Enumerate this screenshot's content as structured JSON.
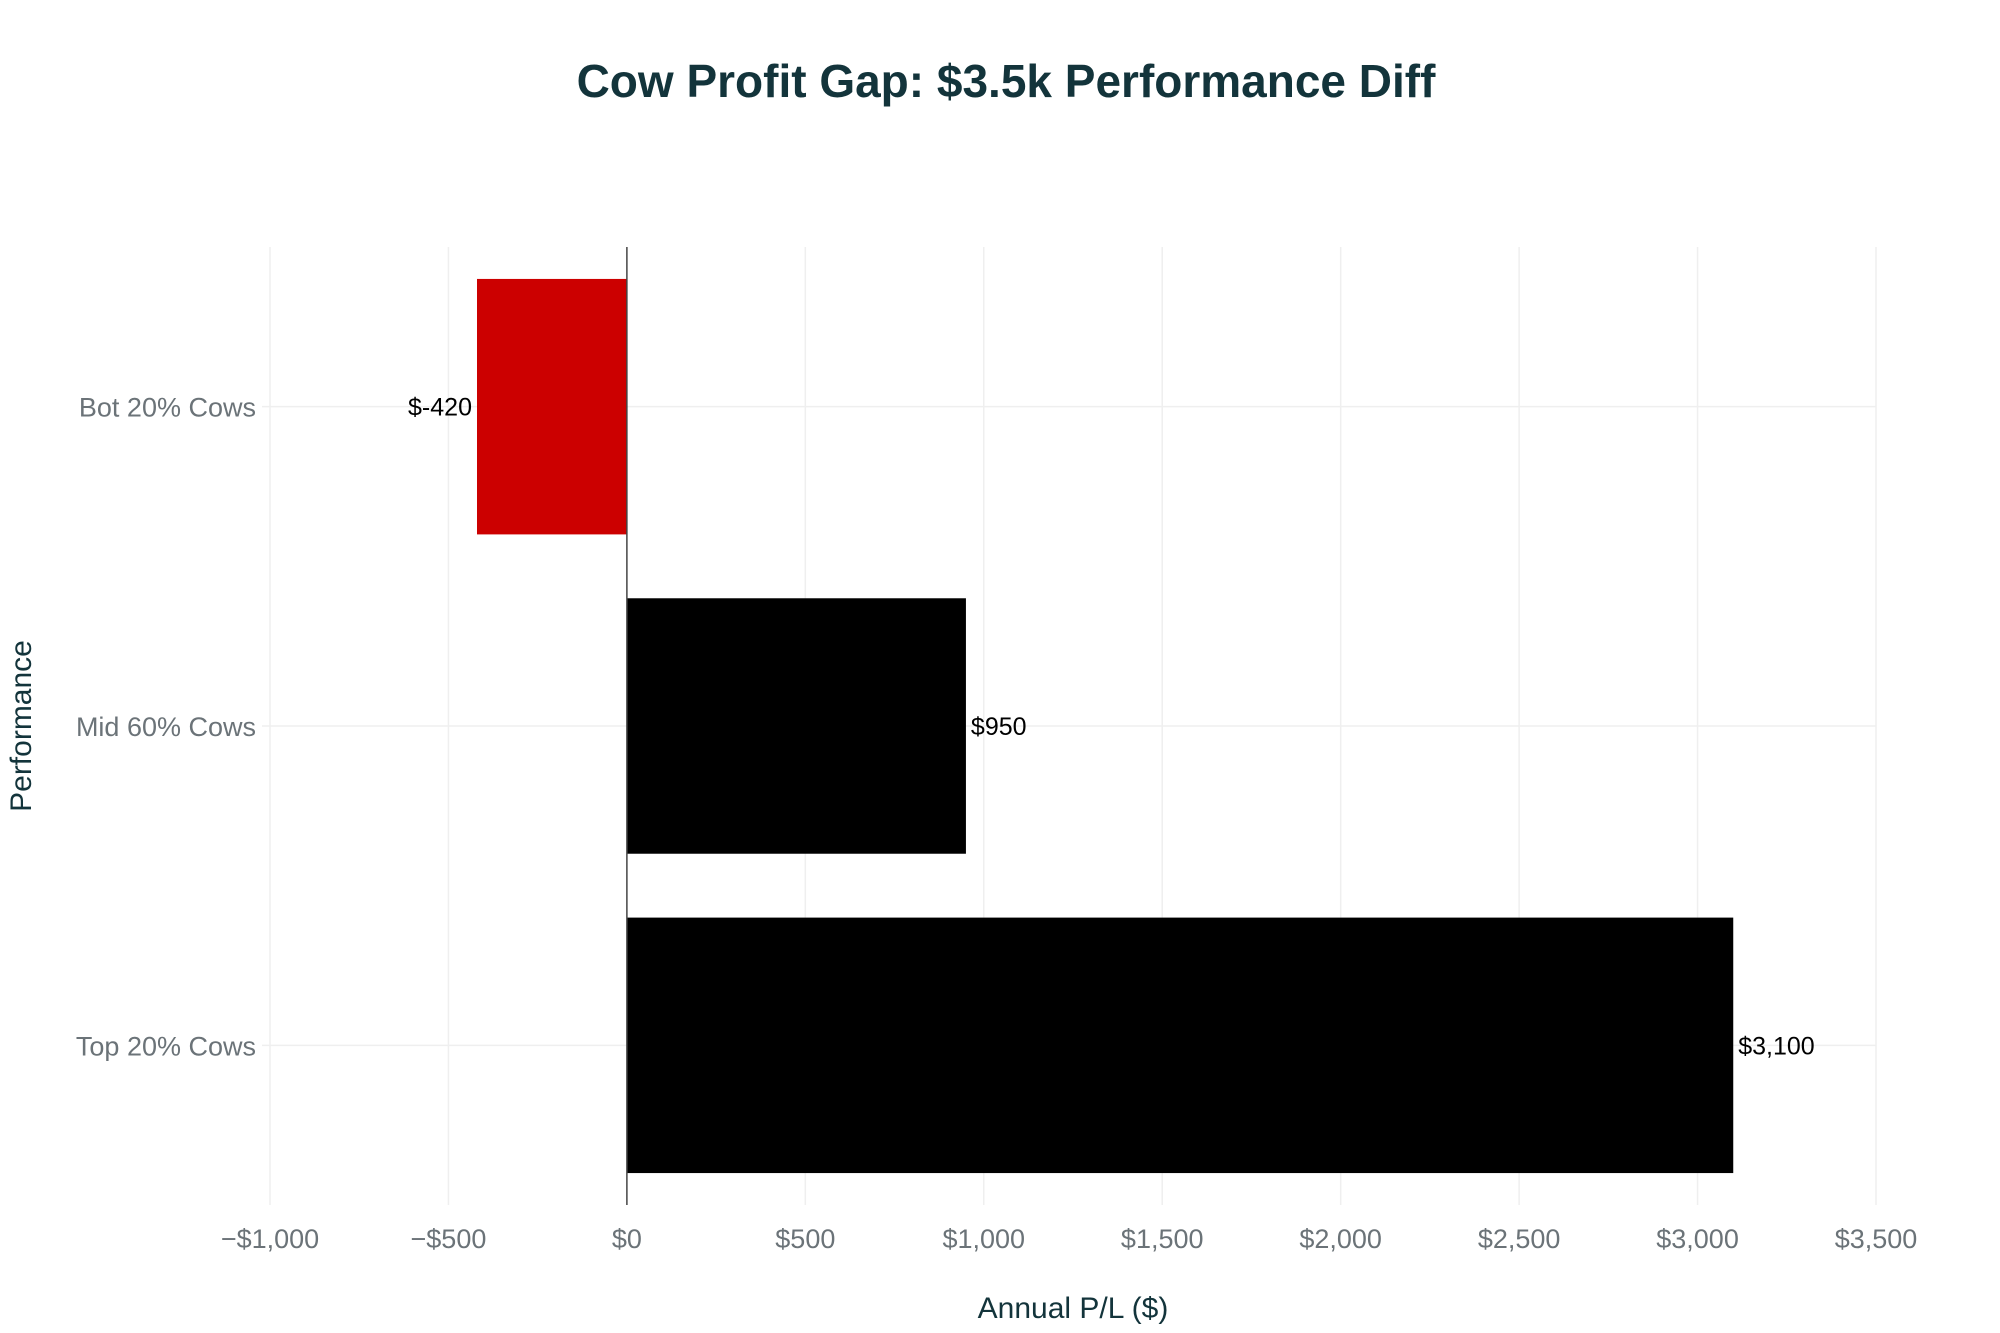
{
  "chart_data": {
    "type": "bar",
    "orientation": "horizontal",
    "title": "Cow Profit Gap: $3.5k Performance Diff",
    "xlabel": "Annual P/L ($)",
    "ylabel": "Performance",
    "categories": [
      "Top 20% Cows",
      "Mid 60% Cows",
      "Bot 20% Cows"
    ],
    "values": [
      3100,
      950,
      -420
    ],
    "data_labels": [
      "$3,100",
      "$950",
      "$-420"
    ],
    "bar_colors": [
      "#000000",
      "#000000",
      "#cc0000"
    ],
    "xlim": [
      -1000,
      3500
    ],
    "xticks": [
      -1000,
      -500,
      0,
      500,
      1000,
      1500,
      2000,
      2500,
      3000,
      3500
    ],
    "xtick_labels": [
      "−$1,000",
      "−$500",
      "$0",
      "$500",
      "$1,000",
      "$1,500",
      "$2,000",
      "$2,500",
      "$3,000",
      "$3,500"
    ],
    "grid": true,
    "legend": "none"
  }
}
